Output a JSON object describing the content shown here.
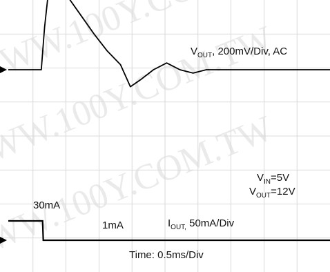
{
  "watermark": "WWW.100Y.COM.TW",
  "chart_data": {
    "type": "line",
    "grid": true,
    "grid_divisions": {
      "x": 10,
      "y": 8
    },
    "time_axis": {
      "label": "Time: 0.5ms/Div",
      "unit": "ms",
      "per_div": 0.5
    },
    "conditions": {
      "vin": "5V",
      "vout": "12V"
    },
    "channels": [
      {
        "name_main": "V",
        "name_sub": "OUT",
        "name_rest": ", 200mV/Div, AC",
        "unit": "mV",
        "per_div": 200,
        "x_ms": [
          0,
          0.5,
          0.55,
          0.62,
          0.7,
          0.9,
          1.1,
          1.3,
          1.5,
          1.7,
          1.85,
          2.0,
          2.2,
          2.4,
          2.6,
          2.8,
          3.0,
          5.0
        ],
        "y_mv": [
          0,
          0,
          250,
          500,
          540,
          430,
          320,
          210,
          110,
          30,
          -100,
          -60,
          0,
          40,
          0,
          -20,
          0,
          0
        ]
      },
      {
        "name_main": "I",
        "name_sub": "OUT,",
        "name_rest": " 50mA/Div",
        "unit": "mA",
        "per_div": 50,
        "x_ms": [
          0,
          0.52,
          0.53,
          5.0
        ],
        "y_ma": [
          30,
          30,
          1,
          1
        ],
        "annotations": [
          "30mA",
          "1mA"
        ]
      }
    ]
  },
  "labels": {
    "vout_main": "V",
    "vout_sub": "OUT",
    "vout_rest": ", 200mV/Div, AC",
    "vin_main": "V",
    "vin_sub": "IN",
    "vin_rest": "=5V",
    "vout2_main": "V",
    "vout2_sub": "OUT",
    "vout2_rest": "=12V",
    "iout_main": "I",
    "iout_sub": "OUT,",
    "iout_rest": " 50mA/Div",
    "i_before": "30mA",
    "i_after": "1mA",
    "time": "Time: 0.5ms/Div"
  }
}
